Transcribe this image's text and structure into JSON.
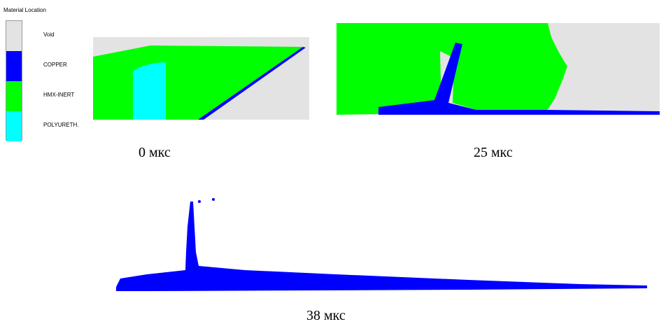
{
  "legend": {
    "title": "Material Location",
    "materials": [
      {
        "name": "Void",
        "color": "#e3e3e3"
      },
      {
        "name": "COPPER",
        "color": "#0000ff"
      },
      {
        "name": "HMX-INERT",
        "color": "#00ff00"
      },
      {
        "name": "POLYURETH.",
        "color": "#00ffff"
      }
    ]
  },
  "panels": [
    {
      "caption": "0 мкс"
    },
    {
      "caption": "25 мкс"
    },
    {
      "caption": "38 мкс"
    }
  ]
}
